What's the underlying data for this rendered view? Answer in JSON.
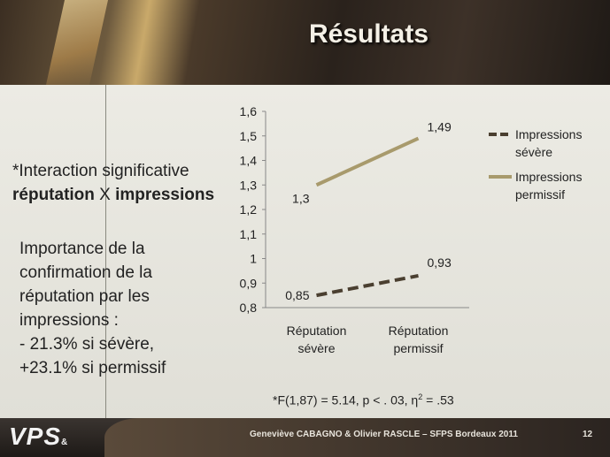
{
  "slide": {
    "title": "Résultats",
    "interaction_prefix": "*Interaction significative",
    "interaction_word1": "réputation",
    "interaction_x": " X ",
    "interaction_word2": "impressions",
    "importance_lines": [
      "Importance de la",
      "confirmation de la",
      "réputation par les",
      "impressions :",
      "- 21.3% si sévère,",
      "+23.1% si permissif"
    ],
    "stat_prefix": "*F(1,87) = 5.14, p < . 03, η",
    "stat_sup": "2",
    "stat_suffix": " = .53",
    "footer_credits": "Geneviève CABAGNO & Olivier RASCLE – SFPS Bordeaux 2011",
    "page_number": "12",
    "logo_text": "VPS",
    "logo_amp": "&"
  },
  "colors": {
    "severe": "#4a3f30",
    "permissif": "#a89a6c",
    "axis": "#888888"
  },
  "chart_data": {
    "type": "line",
    "categories": [
      [
        "Réputation",
        "sévère"
      ],
      [
        "Réputation",
        "permissif"
      ]
    ],
    "ylim": [
      0.8,
      1.6
    ],
    "yticks": [
      0.8,
      0.9,
      1.0,
      1.1,
      1.2,
      1.3,
      1.4,
      1.5,
      1.6
    ],
    "ytick_labels": [
      "0,8",
      "0,9",
      "1",
      "1,1",
      "1,2",
      "1,3",
      "1,4",
      "1,5",
      "1,6"
    ],
    "series": [
      {
        "name": [
          "Impressions",
          "sévère"
        ],
        "values": [
          0.85,
          0.93
        ],
        "labels": [
          "0,85",
          "0,93"
        ],
        "style": "dashed",
        "color": "#4a3f30"
      },
      {
        "name": [
          "Impressions",
          "permissif"
        ],
        "values": [
          1.3,
          1.49
        ],
        "labels": [
          "1,3",
          "1,49"
        ],
        "style": "solid",
        "color": "#a89a6c"
      }
    ],
    "legend_position": "right",
    "grid": false
  }
}
